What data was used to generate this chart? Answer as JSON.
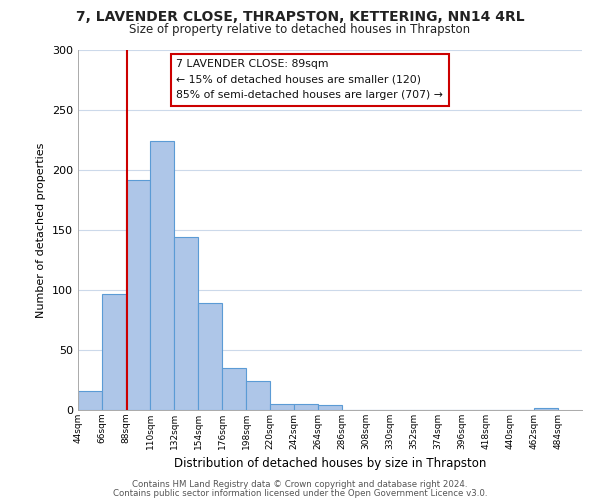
{
  "title": "7, LAVENDER CLOSE, THRAPSTON, KETTERING, NN14 4RL",
  "subtitle": "Size of property relative to detached houses in Thrapston",
  "xlabel": "Distribution of detached houses by size in Thrapston",
  "ylabel": "Number of detached properties",
  "bar_edges": [
    44,
    66,
    88,
    110,
    132,
    154,
    176,
    198,
    220,
    242,
    264,
    286,
    308,
    330,
    352,
    374,
    396,
    418,
    440,
    462,
    484
  ],
  "bar_heights": [
    16,
    97,
    192,
    224,
    144,
    89,
    35,
    24,
    5,
    5,
    4,
    0,
    0,
    0,
    0,
    0,
    0,
    0,
    0,
    2
  ],
  "bar_color": "#aec6e8",
  "bar_edge_color": "#5b9bd5",
  "vline_x": 89,
  "vline_color": "#cc0000",
  "annotation_title": "7 LAVENDER CLOSE: 89sqm",
  "annotation_line1": "← 15% of detached houses are smaller (120)",
  "annotation_line2": "85% of semi-detached houses are larger (707) →",
  "annotation_box_color": "#ffffff",
  "annotation_box_edge": "#cc0000",
  "ylim": [
    0,
    300
  ],
  "yticks": [
    0,
    50,
    100,
    150,
    200,
    250,
    300
  ],
  "xtick_labels": [
    "44sqm",
    "66sqm",
    "88sqm",
    "110sqm",
    "132sqm",
    "154sqm",
    "176sqm",
    "198sqm",
    "220sqm",
    "242sqm",
    "264sqm",
    "286sqm",
    "308sqm",
    "330sqm",
    "352sqm",
    "374sqm",
    "396sqm",
    "418sqm",
    "440sqm",
    "462sqm",
    "484sqm"
  ],
  "footer1": "Contains HM Land Registry data © Crown copyright and database right 2024.",
  "footer2": "Contains public sector information licensed under the Open Government Licence v3.0.",
  "bg_color": "#ffffff",
  "grid_color": "#ccd9ea"
}
